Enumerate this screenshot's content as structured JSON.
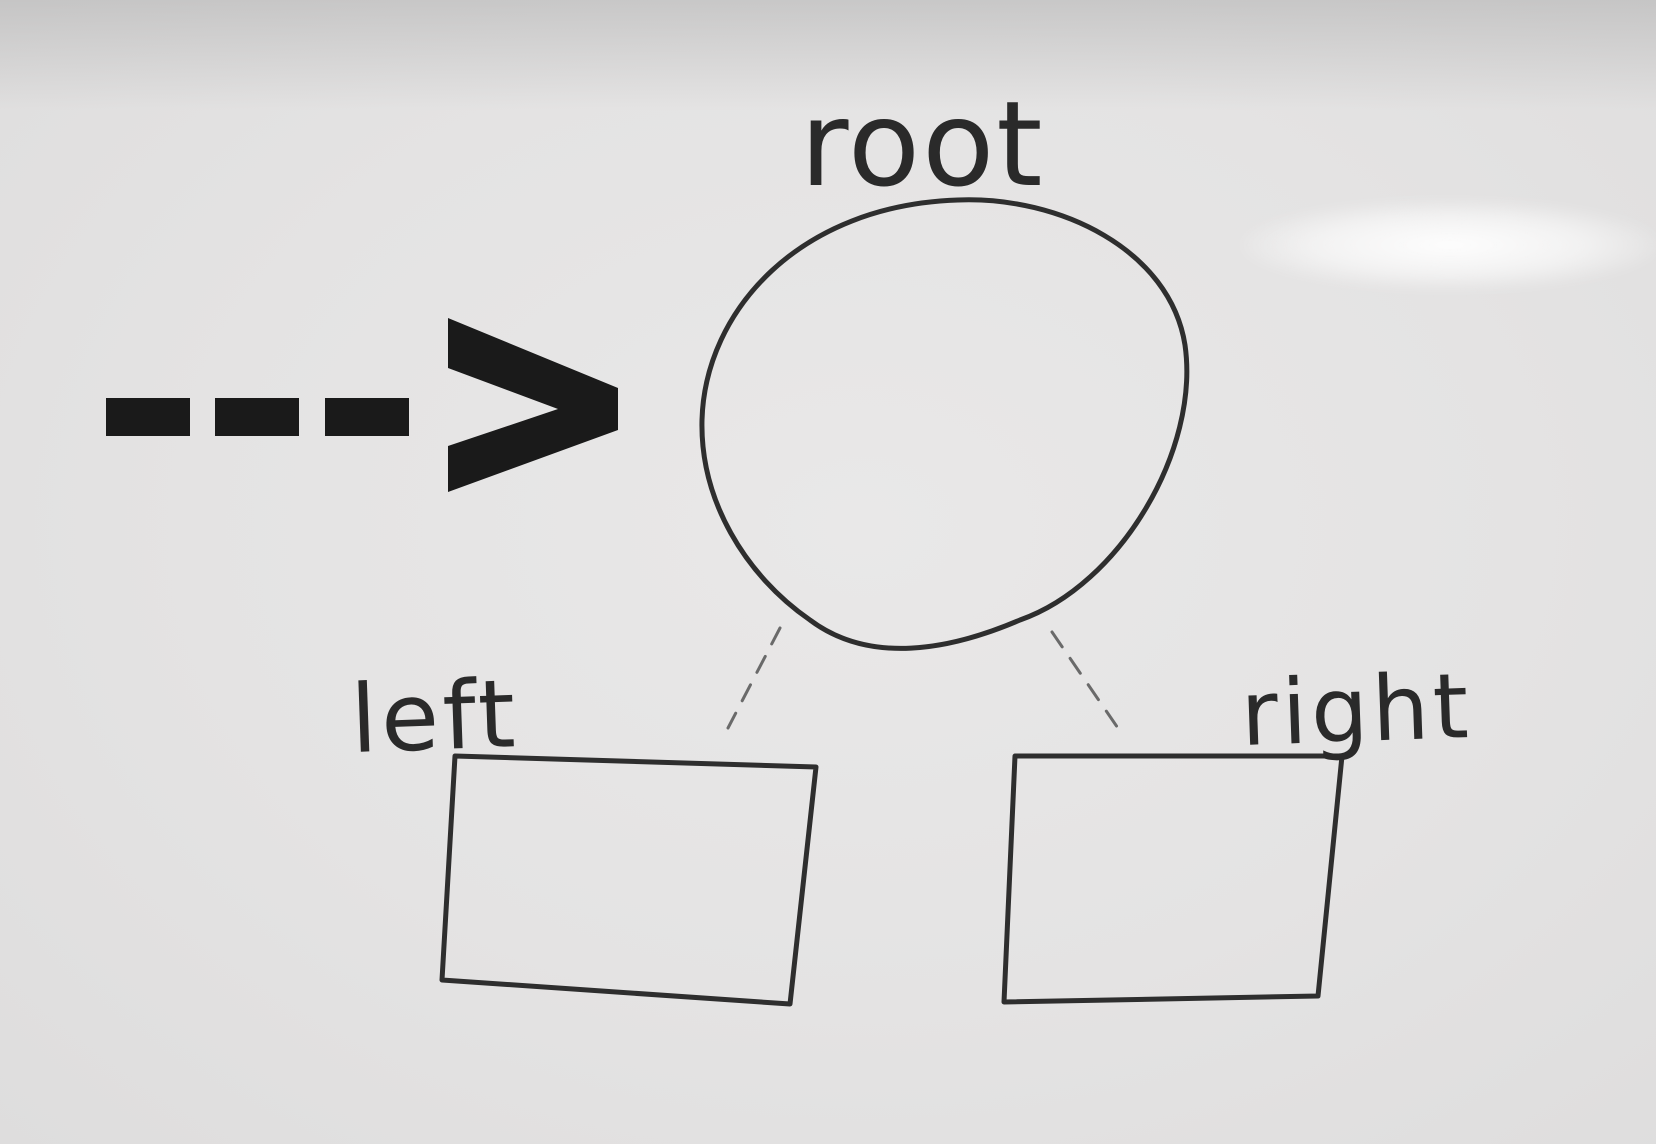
{
  "diagram": {
    "root_label": "root",
    "left_label": "left",
    "right_label": "right",
    "pointer_symbol": "--->"
  },
  "colors": {
    "board": "#e4e3e3",
    "ink": "#2a2a2a",
    "arrow": "#1a1a1a",
    "dashed_edge": "#6a6a6a"
  }
}
